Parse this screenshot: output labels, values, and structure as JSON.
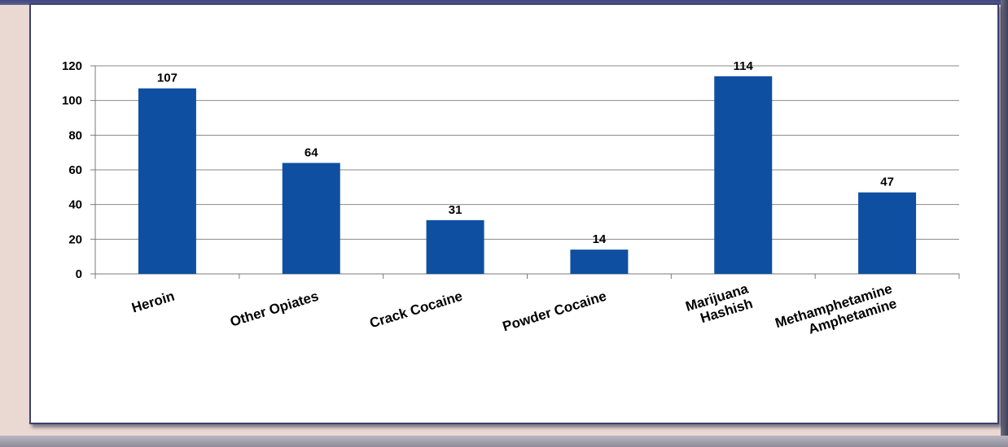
{
  "chart_data": {
    "type": "bar",
    "title": "",
    "xlabel": "",
    "ylabel": "",
    "ylim": [
      0,
      120
    ],
    "yticks": [
      0,
      20,
      40,
      60,
      80,
      100,
      120
    ],
    "grid": true,
    "legend": "none",
    "bar_color": "#0f4fa2",
    "categories": [
      [
        "Heroin"
      ],
      [
        "Other Opiates"
      ],
      [
        "Crack Cocaine"
      ],
      [
        "Powder Cocaine"
      ],
      [
        "Marijuana",
        "Hashish"
      ],
      [
        "Methamphetamine",
        "Amphetamine"
      ]
    ],
    "values": [
      107,
      64,
      31,
      14,
      114,
      47
    ]
  }
}
